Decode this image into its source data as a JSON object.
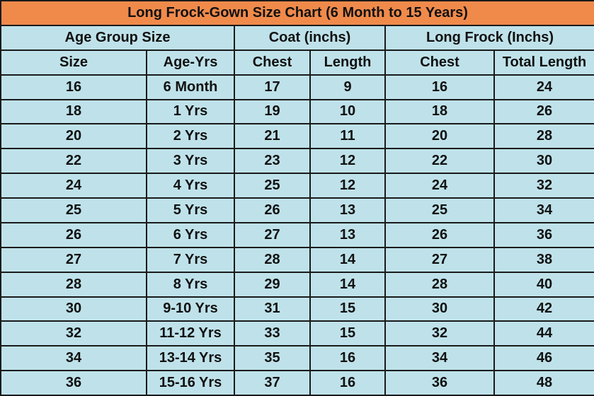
{
  "title": "Long Frock-Gown Size Chart  (6 Month to 15 Years)",
  "group_headers": [
    "Age Group Size",
    "Coat (inchs)",
    "Long Frock (Inchs)"
  ],
  "columns": [
    "Size",
    "Age-Yrs",
    "Chest",
    "Length",
    "Chest",
    "Total Length"
  ],
  "rows": [
    [
      16,
      "6 Month",
      17,
      9,
      16,
      24
    ],
    [
      18,
      "1 Yrs",
      19,
      10,
      18,
      26
    ],
    [
      20,
      "2 Yrs",
      21,
      11,
      20,
      28
    ],
    [
      22,
      "3 Yrs",
      23,
      12,
      22,
      30
    ],
    [
      24,
      "4 Yrs",
      25,
      12,
      24,
      32
    ],
    [
      25,
      "5 Yrs",
      26,
      13,
      25,
      34
    ],
    [
      26,
      "6 Yrs",
      27,
      13,
      26,
      36
    ],
    [
      27,
      "7 Yrs",
      28,
      14,
      27,
      38
    ],
    [
      28,
      "8 Yrs",
      29,
      14,
      28,
      40
    ],
    [
      30,
      "9-10 Yrs",
      31,
      15,
      30,
      42
    ],
    [
      32,
      "11-12 Yrs",
      33,
      15,
      32,
      44
    ],
    [
      34,
      "13-14 Yrs",
      35,
      16,
      34,
      46
    ],
    [
      36,
      "15-16 Yrs",
      37,
      16,
      36,
      48
    ]
  ]
}
